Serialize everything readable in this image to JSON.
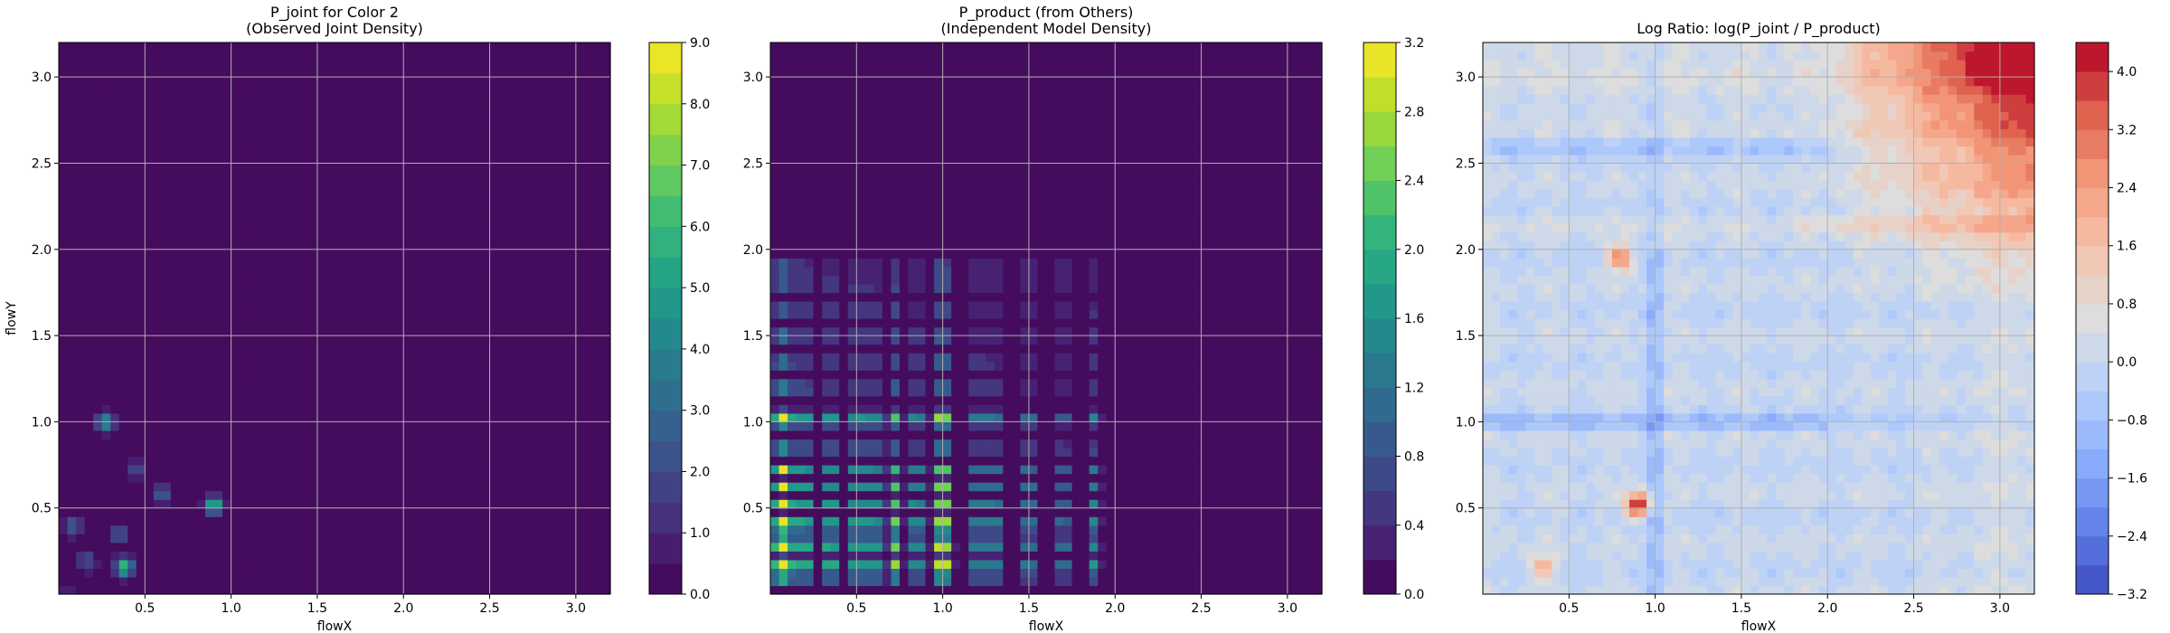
{
  "chart_data": [
    {
      "type": "heatmap",
      "title": "P_joint for Color 2\n(Observed Joint Density)",
      "xlabel": "flowX",
      "ylabel": "flowY",
      "xlim": [
        0.0,
        3.2
      ],
      "ylim": [
        0.0,
        3.2
      ],
      "xticks": [
        0.5,
        1.0,
        1.5,
        2.0,
        2.5,
        3.0
      ],
      "yticks": [
        0.5,
        1.0,
        1.5,
        2.0,
        2.5,
        3.0
      ],
      "grid": true,
      "colormap": "viridis",
      "colorbar": {
        "min": 0,
        "max": 9,
        "ticks": [
          0,
          1,
          2,
          3,
          4,
          5,
          6,
          7,
          8,
          9
        ],
        "levels": 18
      },
      "hotspots": [
        {
          "x": 0.38,
          "y": 0.16,
          "value": 6.5
        },
        {
          "x": 0.9,
          "y": 0.52,
          "value": 6.0
        },
        {
          "x": 0.27,
          "y": 1.0,
          "value": 4.5
        },
        {
          "x": 0.6,
          "y": 0.58,
          "value": 3.0
        },
        {
          "x": 0.08,
          "y": 0.4,
          "value": 2.5
        },
        {
          "x": 0.35,
          "y": 0.35,
          "value": 2.5
        },
        {
          "x": 0.45,
          "y": 0.72,
          "value": 2.0
        },
        {
          "x": 0.15,
          "y": 0.2,
          "value": 2.0
        }
      ]
    },
    {
      "type": "heatmap",
      "title": "P_product (from Others)\n(Independent Model Density)",
      "xlabel": "flowX",
      "ylabel": "",
      "xlim": [
        0.0,
        3.2
      ],
      "ylim": [
        0.0,
        3.2
      ],
      "xticks": [
        0.5,
        1.0,
        1.5,
        2.0,
        2.5,
        3.0
      ],
      "yticks": [
        0.5,
        1.0,
        1.5,
        2.0,
        2.5,
        3.0
      ],
      "grid": true,
      "colormap": "viridis",
      "colorbar": {
        "min": 0.0,
        "max": 3.2,
        "ticks": [
          0.0,
          0.4,
          0.8,
          1.2,
          1.6,
          2.0,
          2.4,
          2.8,
          3.2
        ],
        "levels": 16
      },
      "marginal_x_peaks": [
        0.05,
        0.1,
        0.2,
        0.35,
        0.5,
        0.6,
        0.72,
        0.85,
        0.98,
        1.02,
        1.2,
        1.3,
        1.5,
        1.7,
        1.88
      ],
      "marginal_y_peaks": [
        0.1,
        0.18,
        0.27,
        0.35,
        0.42,
        0.52,
        0.62,
        0.72,
        0.85,
        1.0,
        1.04,
        1.2,
        1.35,
        1.5,
        1.65,
        1.8,
        1.9
      ],
      "peak_value": 2.9
    },
    {
      "type": "heatmap",
      "title": "Log Ratio: log(P_joint / P_product)",
      "xlabel": "flowX",
      "ylabel": "",
      "xlim": [
        0.0,
        3.2
      ],
      "ylim": [
        0.0,
        3.2
      ],
      "xticks": [
        0.5,
        1.0,
        1.5,
        2.0,
        2.5,
        3.0
      ],
      "yticks": [
        0.5,
        1.0,
        1.5,
        2.0,
        2.5,
        3.0
      ],
      "grid": true,
      "colormap": "coolwarm",
      "colorbar": {
        "min": -3.2,
        "max": 4.4,
        "ticks": [
          -3.2,
          -2.4,
          -1.6,
          -0.8,
          0.0,
          0.8,
          1.6,
          2.4,
          3.2,
          4.0
        ],
        "levels": 19
      },
      "features": [
        {
          "x": 0.9,
          "y": 0.52,
          "value": 4.4
        },
        {
          "x": 0.8,
          "y": 1.95,
          "value": 2.8
        },
        {
          "x": 0.35,
          "y": 0.16,
          "value": 2.0
        },
        {
          "x": 2.9,
          "y": 3.05,
          "value": 3.6
        }
      ]
    }
  ]
}
